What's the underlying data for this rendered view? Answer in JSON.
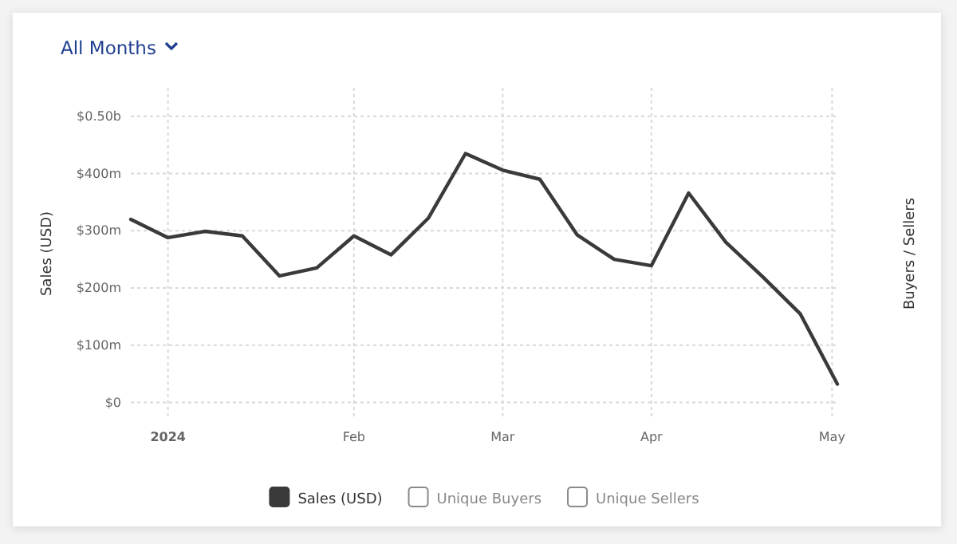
{
  "chart_data": {
    "type": "line",
    "title": "All Months",
    "ylabel": "Sales (USD)",
    "y2label": "Buyers / Sellers",
    "x": [
      "2023-12-25",
      "2024-01-01",
      "2024-01-08",
      "2024-01-15",
      "2024-01-22",
      "2024-01-29",
      "2024-02-05",
      "2024-02-12",
      "2024-02-19",
      "2024-02-26",
      "2024-03-04",
      "2024-03-11",
      "2024-03-18",
      "2024-03-25",
      "2024-04-01",
      "2024-04-08",
      "2024-04-15",
      "2024-04-22",
      "2024-04-29",
      "2024-05-06"
    ],
    "series": [
      {
        "name": "Sales (USD)",
        "color": "#3a3a3a",
        "values": [
          320000000,
          288000000,
          299000000,
          291000000,
          221000000,
          235000000,
          291000000,
          258000000,
          322000000,
          435000000,
          406000000,
          390000000,
          293000000,
          250000000,
          239000000,
          366000000,
          280000000,
          219000000,
          155000000,
          32000000
        ]
      },
      {
        "name": "Unique Buyers",
        "color": "#8a8a8a",
        "values": [
          null,
          null,
          null,
          null,
          null,
          null,
          null,
          null,
          null,
          null,
          null,
          null,
          null,
          null,
          null,
          null,
          null,
          null,
          null,
          null
        ]
      },
      {
        "name": "Unique Sellers",
        "color": "#8a8a8a",
        "values": [
          null,
          null,
          null,
          null,
          null,
          null,
          null,
          null,
          null,
          null,
          null,
          null,
          null,
          null,
          null,
          null,
          null,
          null,
          null,
          null
        ]
      }
    ],
    "xlim": [
      "2023-12-25",
      "2024-05-06"
    ],
    "xticks": [
      {
        "value": "2024-01-01",
        "label": "2024"
      },
      {
        "value": "2024-02-05",
        "label": "Feb"
      },
      {
        "value": "2024-03-04",
        "label": "Mar"
      },
      {
        "value": "2024-04-01",
        "label": "Apr"
      },
      {
        "value": "2024-05-05",
        "label": "May"
      }
    ],
    "ylim": [
      -30000000,
      550000000
    ],
    "yticks": [
      {
        "value": 0,
        "label": "$0"
      },
      {
        "value": 100000000,
        "label": "$100m"
      },
      {
        "value": 200000000,
        "label": "$200m"
      },
      {
        "value": 300000000,
        "label": "$300m"
      },
      {
        "value": 400000000,
        "label": "$400m"
      },
      {
        "value": 500000000,
        "label": "$0.50b"
      }
    ],
    "grid": true,
    "legend": "bottom",
    "marker": "none",
    "line_style": "solid"
  }
}
